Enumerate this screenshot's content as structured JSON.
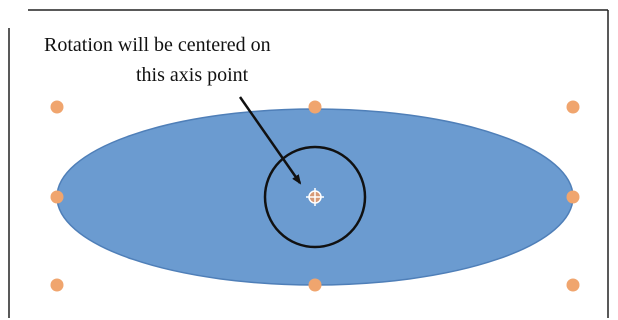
{
  "annotation": {
    "line1": "Rotation will be centered on",
    "line2": "this axis point"
  },
  "colors": {
    "ellipse_fill": "#6b9bd0",
    "ellipse_stroke": "#4f7fb8",
    "handle_fill": "#f0a56e",
    "axis_point_fill": "#d79a78",
    "frame": "#222222",
    "arrow": "#111111",
    "circle": "#111111"
  },
  "icons": {
    "handles": "resize-handle-icon",
    "axis_point": "rotation-axis-crosshair-icon"
  }
}
